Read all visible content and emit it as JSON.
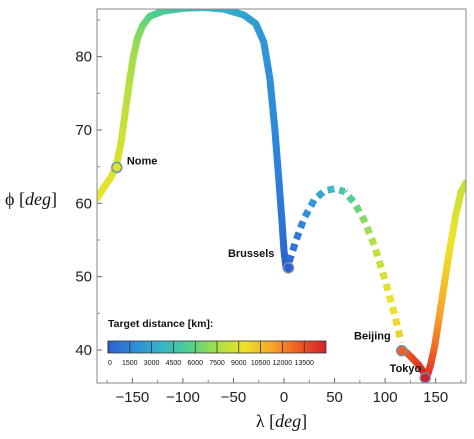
{
  "chart_data": {
    "type": "line",
    "xlabel_symbol": "λ",
    "xlabel_unit": "deg",
    "ylabel_symbol": "ϕ",
    "ylabel_unit": "deg",
    "xlim": [
      -185,
      180
    ],
    "ylim": [
      35.5,
      86.5
    ],
    "xticks": [
      -150,
      -100,
      -50,
      0,
      50,
      100,
      150
    ],
    "yticks": [
      40,
      50,
      60,
      70,
      80
    ],
    "colorbar": {
      "title": "Target distance [km]:",
      "ticks": [
        0,
        1500,
        3000,
        4500,
        6000,
        7500,
        9000,
        10500,
        12000,
        13500
      ],
      "range": [
        0,
        15000
      ],
      "colors": [
        "#2c5fcf",
        "#2f8ddb",
        "#36b6c6",
        "#4fcf8c",
        "#a8df45",
        "#eee328",
        "#f6a72a",
        "#ef5a24",
        "#d41f2a"
      ]
    },
    "series": [
      {
        "style": "solid",
        "points": [
          [
            -185,
            60.7,
            9300
          ],
          [
            -178,
            62.2,
            9150
          ],
          [
            -171,
            63.6,
            9020
          ],
          [
            -166,
            65.0,
            8900
          ],
          [
            -161,
            68.5,
            8600
          ],
          [
            -157,
            72.5,
            8200
          ],
          [
            -153,
            76.5,
            7800
          ],
          [
            -149,
            80.0,
            7400
          ],
          [
            -145,
            82.5,
            7000
          ],
          [
            -140,
            84.2,
            6500
          ],
          [
            -133,
            85.5,
            5900
          ],
          [
            -120,
            86.2,
            5300
          ],
          [
            -100,
            86.6,
            4600
          ],
          [
            -80,
            86.7,
            4000
          ],
          [
            -60,
            86.5,
            3500
          ],
          [
            -40,
            85.7,
            3000
          ],
          [
            -28,
            84.5,
            2600
          ],
          [
            -20,
            82.0,
            2300
          ],
          [
            -14,
            77.0,
            2000
          ],
          [
            -9,
            70.0,
            1700
          ],
          [
            -5,
            63.0,
            1300
          ],
          [
            -2,
            57.5,
            900
          ],
          [
            0,
            53.5,
            500
          ],
          [
            2,
            51.2,
            0
          ]
        ]
      },
      {
        "style": "dotted",
        "points": [
          [
            5,
            52.0,
            300
          ],
          [
            12,
            55.0,
            900
          ],
          [
            20,
            58.0,
            1600
          ],
          [
            30,
            60.5,
            2400
          ],
          [
            40,
            61.7,
            3200
          ],
          [
            50,
            62.0,
            4100
          ],
          [
            60,
            61.6,
            5000
          ],
          [
            70,
            60.0,
            5900
          ],
          [
            80,
            57.5,
            6900
          ],
          [
            90,
            54.0,
            7900
          ],
          [
            100,
            49.5,
            8800
          ],
          [
            110,
            44.5,
            9700
          ],
          [
            116,
            41.0,
            10200
          ]
        ]
      },
      {
        "style": "solid",
        "points": [
          [
            120,
            39.8,
            12800
          ],
          [
            126,
            39.0,
            13400
          ],
          [
            133,
            38.0,
            14000
          ],
          [
            138,
            37.0,
            14600
          ],
          [
            141,
            36.2,
            15000
          ]
        ]
      },
      {
        "style": "solid",
        "points": [
          [
            141,
            36.2,
            15000
          ],
          [
            145,
            38.0,
            13900
          ],
          [
            149,
            40.5,
            12800
          ],
          [
            153,
            44.0,
            11700
          ],
          [
            158,
            48.5,
            10600
          ],
          [
            163,
            53.0,
            9700
          ],
          [
            170,
            58.5,
            8900
          ],
          [
            175,
            61.5,
            8500
          ],
          [
            180,
            62.8,
            8200
          ]
        ]
      }
    ],
    "cities": [
      {
        "name": "Nome",
        "lon": -165.4,
        "lat": 64.9,
        "label_side": "right"
      },
      {
        "name": "Brussels",
        "lon": 4.35,
        "lat": 51.2,
        "label_side": "left"
      },
      {
        "name": "Beijing",
        "lon": 116.4,
        "lat": 39.9,
        "label_side": "left"
      },
      {
        "name": "Tokyo",
        "lon": 139.7,
        "lat": 36.2,
        "label_side": "left"
      }
    ]
  }
}
